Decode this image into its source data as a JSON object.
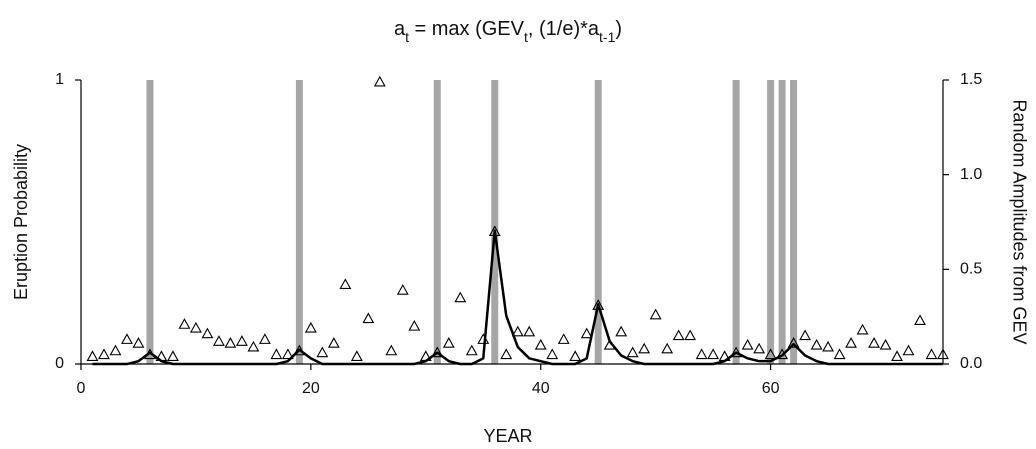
{
  "chart_data": {
    "type": "line",
    "title": [
      "a",
      "t",
      " = max (GEV",
      "t",
      ", (1/e)*a",
      "t-1",
      ")"
    ],
    "xlabel": "YEAR",
    "ylabel": "Eruption Probability",
    "y2label": "Random Amplitudes from GEV",
    "xlim": [
      0,
      75
    ],
    "xticks": [
      0,
      20,
      40,
      60
    ],
    "ylim": [
      0,
      1
    ],
    "yticks": [
      0,
      1
    ],
    "y2lim": [
      0,
      1.5
    ],
    "y2ticks": [
      {
        "value": 0,
        "label": "0.0"
      },
      {
        "value": 0.5,
        "label": "0.5"
      },
      {
        "value": 1.0,
        "label": "1.0"
      },
      {
        "value": 1.5,
        "label": "1.5"
      }
    ],
    "eruptions": {
      "color": "#a6a6a6",
      "x": [
        6,
        19,
        31,
        36,
        45,
        57,
        60,
        61,
        62
      ]
    },
    "x": [
      1,
      2,
      3,
      4,
      5,
      6,
      7,
      8,
      9,
      10,
      11,
      12,
      13,
      14,
      15,
      16,
      17,
      18,
      19,
      20,
      21,
      22,
      23,
      24,
      25,
      26,
      27,
      28,
      29,
      30,
      31,
      32,
      33,
      34,
      35,
      36,
      37,
      38,
      39,
      40,
      41,
      42,
      43,
      44,
      45,
      46,
      47,
      48,
      49,
      50,
      51,
      52,
      53,
      54,
      55,
      56,
      57,
      58,
      59,
      60,
      61,
      62,
      63,
      64,
      65,
      66,
      67,
      68,
      69,
      70,
      71,
      72,
      73,
      74,
      75
    ],
    "series": [
      {
        "kind": "line",
        "color": "#000000",
        "values": [
          0,
          0,
          0,
          0,
          0.01,
          0.04,
          0.01,
          0,
          0,
          0,
          0,
          0,
          0,
          0,
          0,
          0,
          0,
          0.01,
          0.05,
          0.02,
          0,
          0,
          0,
          0,
          0,
          0,
          0,
          0,
          0,
          0.01,
          0.04,
          0.01,
          0,
          0,
          0.02,
          0.47,
          0.17,
          0.06,
          0.02,
          0.01,
          0,
          0,
          0,
          0.02,
          0.21,
          0.08,
          0.03,
          0.01,
          0,
          0,
          0,
          0,
          0,
          0,
          0,
          0.01,
          0.04,
          0.02,
          0.01,
          0.01,
          0.03,
          0.07,
          0.03,
          0.01,
          0,
          0,
          0,
          0,
          0,
          0,
          0,
          0,
          0,
          0,
          0
        ]
      },
      {
        "kind": "scatter",
        "axis": "y2",
        "color": "#000000",
        "values": [
          0.04,
          0.05,
          0.07,
          0.13,
          0.11,
          0.05,
          0.04,
          0.04,
          0.21,
          0.19,
          0.16,
          0.12,
          0.11,
          0.12,
          0.09,
          0.13,
          0.05,
          0.05,
          0.07,
          0.19,
          0.06,
          0.11,
          0.42,
          0.04,
          0.24,
          1.49,
          0.07,
          0.39,
          0.2,
          0.04,
          0.06,
          0.11,
          0.35,
          0.07,
          0.13,
          0.7,
          0.05,
          0.17,
          0.17,
          0.1,
          0.05,
          0.13,
          0.04,
          0.16,
          0.31,
          0.1,
          0.17,
          0.06,
          0.08,
          0.26,
          0.08,
          0.15,
          0.15,
          0.05,
          0.05,
          0.04,
          0.06,
          0.1,
          0.08,
          0.05,
          0.05,
          0.11,
          0.15,
          0.1,
          0.09,
          0.05,
          0.11,
          0.18,
          0.11,
          0.1,
          0.04,
          0.07,
          0.23,
          0.05,
          0.05
        ]
      }
    ]
  }
}
